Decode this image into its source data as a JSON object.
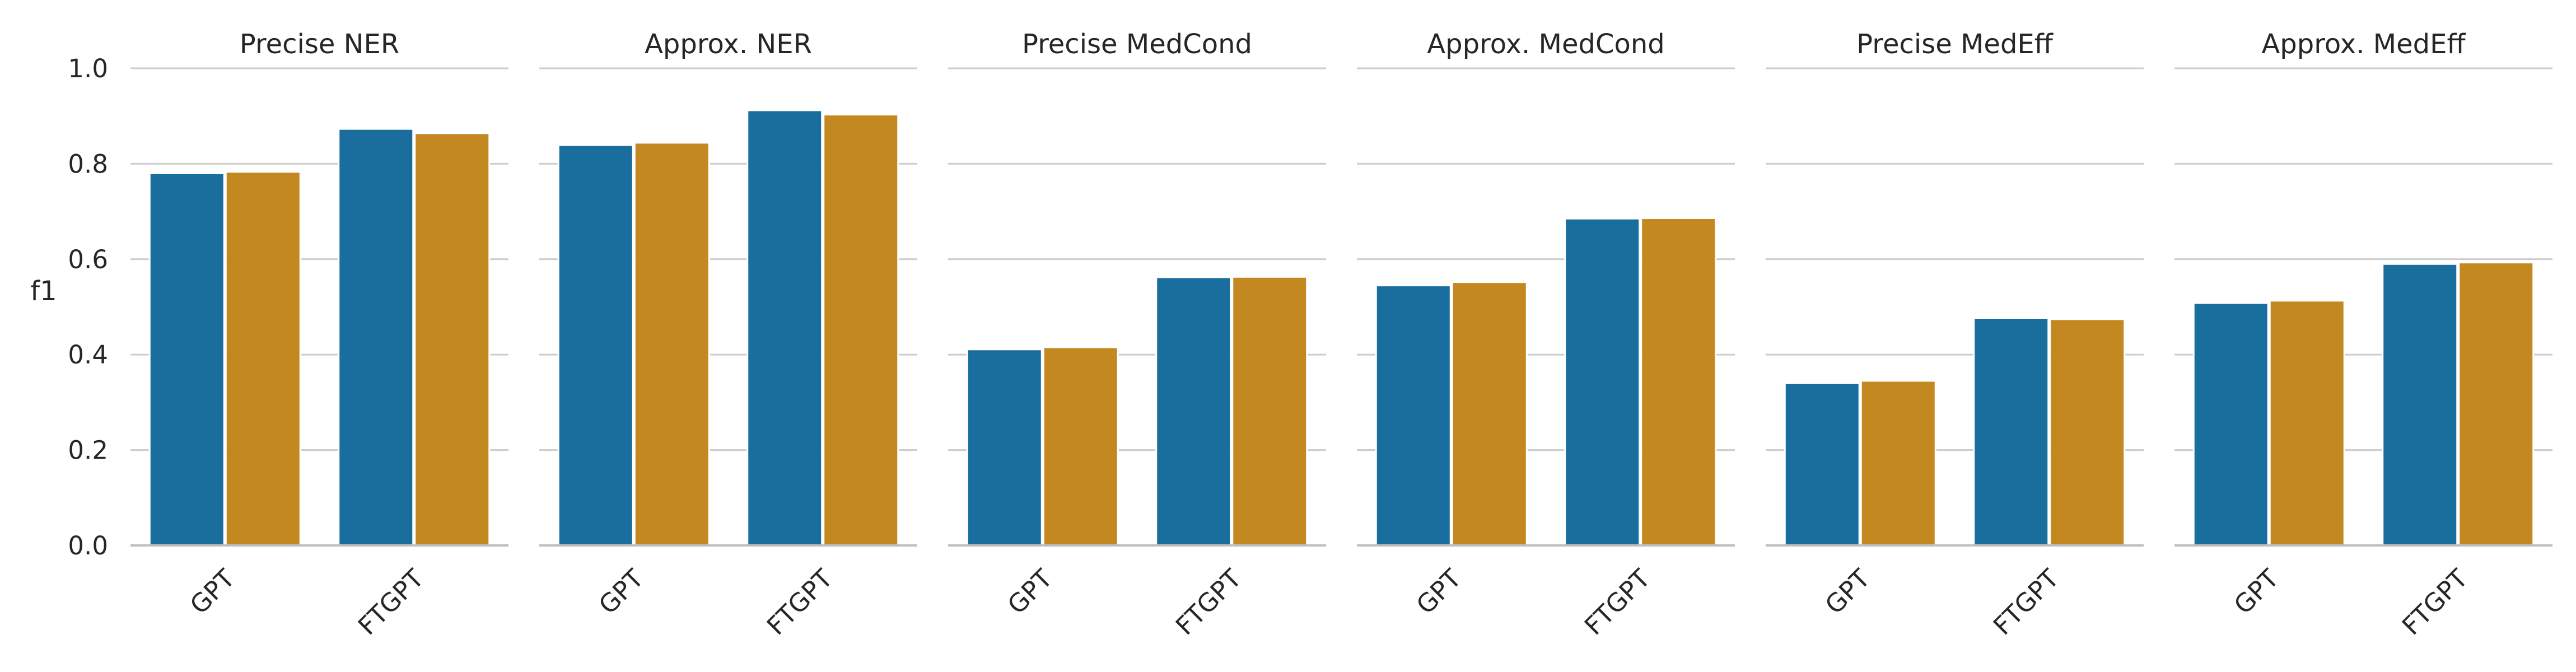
{
  "chart_data": {
    "type": "bar",
    "ylabel": "f1",
    "ylim": [
      0,
      1.0
    ],
    "yticks": [
      "0.0",
      "0.2",
      "0.4",
      "0.6",
      "0.8",
      "1.0"
    ],
    "categories": [
      "GPT",
      "FTGPT"
    ],
    "series_colors": [
      "#1a6e9e",
      "#c48820"
    ],
    "grid": true,
    "legend": "none",
    "panels": [
      {
        "title": "Precise NER",
        "series": [
          {
            "values": [
              0.78,
              0.873
            ]
          },
          {
            "values": [
              0.783,
              0.864
            ]
          }
        ]
      },
      {
        "title": "Approx. NER",
        "series": [
          {
            "values": [
              0.839,
              0.912
            ]
          },
          {
            "values": [
              0.844,
              0.903
            ]
          }
        ]
      },
      {
        "title": "Precise MedCond",
        "series": [
          {
            "values": [
              0.411,
              0.562
            ]
          },
          {
            "values": [
              0.415,
              0.563
            ]
          }
        ]
      },
      {
        "title": "Approx. MedCond",
        "series": [
          {
            "values": [
              0.545,
              0.685
            ]
          },
          {
            "values": [
              0.552,
              0.686
            ]
          }
        ]
      },
      {
        "title": "Precise MedEff",
        "series": [
          {
            "values": [
              0.34,
              0.476
            ]
          },
          {
            "values": [
              0.345,
              0.474
            ]
          }
        ]
      },
      {
        "title": "Approx. MedEff",
        "series": [
          {
            "values": [
              0.508,
              0.59
            ]
          },
          {
            "values": [
              0.513,
              0.593
            ]
          }
        ]
      }
    ]
  }
}
